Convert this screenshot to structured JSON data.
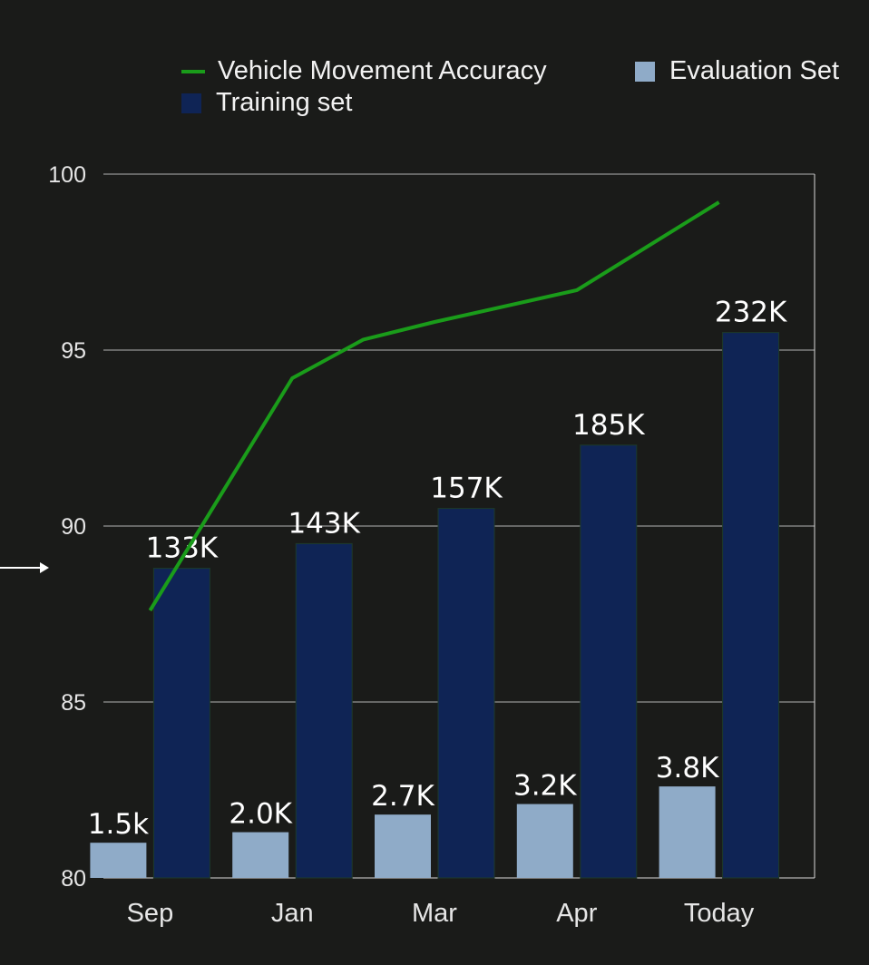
{
  "legend": {
    "accuracy": "Vehicle Movement Accuracy",
    "training": "Training set",
    "evaluation": "Evaluation Set"
  },
  "colors": {
    "background": "#1a1b19",
    "accuracy": "#1a9c1a",
    "training": "#0f2455",
    "evaluation": "#8fabc8",
    "grid": "#d9d9d9"
  },
  "chart_data": {
    "type": "bar",
    "categories": [
      "Sep",
      "Jan",
      "Mar",
      "Apr",
      "Today"
    ],
    "ylim": [
      80,
      100
    ],
    "yticks": [
      80,
      85,
      90,
      95,
      100
    ],
    "grid": true,
    "legend_position": "top",
    "series": [
      {
        "name": "Evaluation Set",
        "type": "bar",
        "values": [
          81.0,
          81.3,
          81.8,
          82.1,
          82.6
        ],
        "labels": [
          "1.5k",
          "2.0K",
          "2.7K",
          "3.2K",
          "3.8K"
        ]
      },
      {
        "name": "Training set",
        "type": "bar",
        "values": [
          88.8,
          89.5,
          90.5,
          92.3,
          95.5
        ],
        "labels": [
          "133K",
          "143K",
          "157K",
          "185K",
          "232K"
        ]
      },
      {
        "name": "Vehicle Movement Accuracy",
        "type": "line",
        "x": [
          0,
          1,
          1.5,
          2,
          3,
          4
        ],
        "values": [
          87.6,
          94.2,
          95.3,
          95.8,
          96.7,
          99.2
        ]
      }
    ]
  }
}
